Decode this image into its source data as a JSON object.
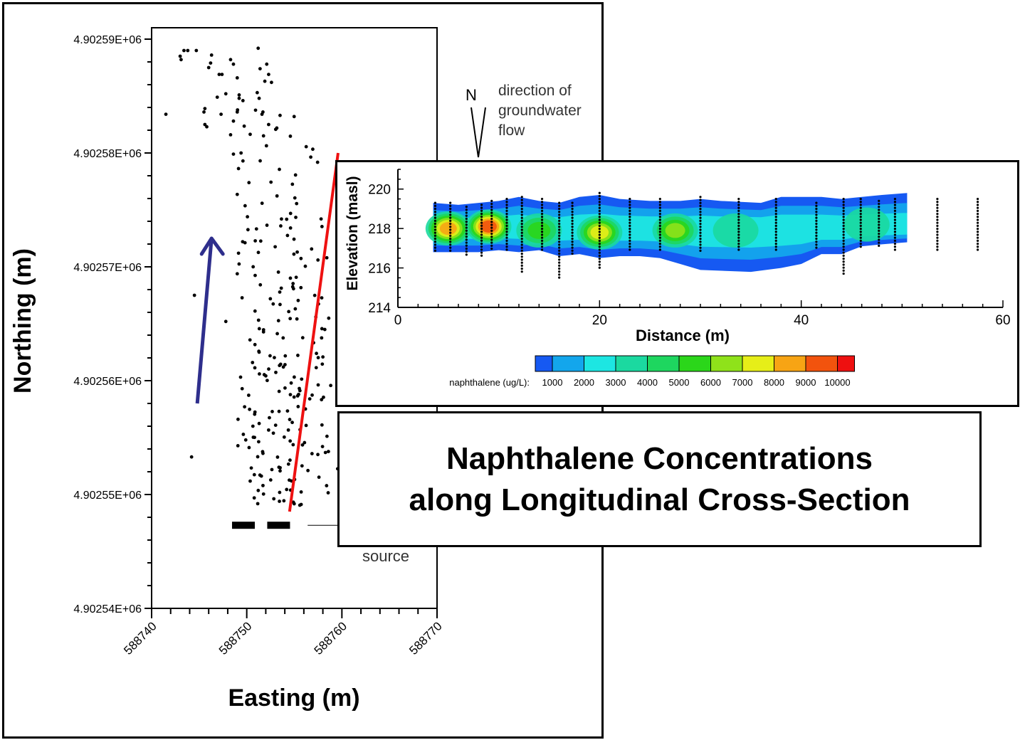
{
  "title": {
    "line1": "Naphthalene Concentrations",
    "line2": "along Longitudinal Cross-Section"
  },
  "colors": {
    "flow_arrow": "#2e2e8c",
    "section_line": "#ee1111"
  },
  "chart_data": [
    {
      "type": "scatter",
      "title": "",
      "xlabel": "Easting (m)",
      "ylabel": "Northing (m)",
      "xlim": [
        588740,
        588770
      ],
      "ylim": [
        4902540,
        4902591
      ],
      "x_ticks": [
        {
          "value": 588740,
          "label": "588740"
        },
        {
          "value": 588750,
          "label": "588750"
        },
        {
          "value": 588760,
          "label": "588760"
        },
        {
          "value": 588770,
          "label": "588770"
        }
      ],
      "y_ticks": [
        {
          "value": 4902540,
          "label": "4.90254E+06"
        },
        {
          "value": 4902550,
          "label": "4.90255E+06"
        },
        {
          "value": 4902560,
          "label": "4.90256E+06"
        },
        {
          "value": 4902570,
          "label": "4.90257E+06"
        },
        {
          "value": 4902580,
          "label": "4.90258E+06"
        },
        {
          "value": 4902590,
          "label": "4.90259E+06"
        }
      ],
      "annotations": {
        "north_label": "N",
        "flow_label": [
          "direction of",
          "groundwater",
          "flow"
        ],
        "source_label": "source"
      },
      "cross_section_line": [
        [
          588759.6,
          4902580
        ],
        [
          588754.5,
          4902548.5
        ]
      ],
      "flow_arrow": [
        [
          588744.8,
          4902558
        ],
        [
          588746.3,
          4902572.5
        ]
      ],
      "source_blocks": [
        [
          588749.5,
          4902547.3
        ],
        [
          588753.2,
          4902547.3
        ]
      ],
      "wells": [
        [
          588743.1,
          4902588.2
        ],
        [
          588752.1,
          4902587.8
        ],
        [
          588749.0,
          4902586.6
        ],
        [
          588751.9,
          4902586.3
        ],
        [
          588744.7,
          4902589.0
        ],
        [
          588748.3,
          4902581.6
        ],
        [
          588746.9,
          4902584.9
        ],
        [
          588749.6,
          4902584.6
        ],
        [
          588746.2,
          4902587.9
        ],
        [
          588752.3,
          4902586.9
        ],
        [
          588749.0,
          4902583.6
        ],
        [
          588752.3,
          4902582.5
        ],
        [
          588751.1,
          4902585.3
        ],
        [
          588748.6,
          4902587.8
        ],
        [
          588747.1,
          4902586.9
        ],
        [
          588745.8,
          4902582.3
        ],
        [
          588749.2,
          4902585.1
        ],
        [
          588751.7,
          4902583.6
        ],
        [
          588746.0,
          4902587.5
        ],
        [
          588747.3,
          4902583.4
        ],
        [
          588746.3,
          4902588.6
        ],
        [
          588748.3,
          4902588.2
        ],
        [
          588749.2,
          4902584.8
        ],
        [
          588743.8,
          4902589.0
        ],
        [
          588747.8,
          4902585.2
        ],
        [
          588751.3,
          4902584.8
        ],
        [
          588743.0,
          4902588.5
        ],
        [
          588751.6,
          4902583.4
        ],
        [
          588743.4,
          4902589.0
        ],
        [
          588745.6,
          4902582.5
        ],
        [
          588749.6,
          4902579.3
        ],
        [
          588753.5,
          4902583.3
        ],
        [
          588751.2,
          4902589.2
        ],
        [
          588749.4,
          4902580.0
        ],
        [
          588748.6,
          4902579.9
        ],
        [
          588752.6,
          4902586.2
        ],
        [
          588745.6,
          4902583.9
        ],
        [
          588751.4,
          4902587.4
        ],
        [
          588748.6,
          4902582.8
        ],
        [
          588747.4,
          4902586.9
        ]
      ],
      "wells_note": ""
    },
    {
      "type": "heatmap",
      "title": "",
      "xlabel": "Distance (m)",
      "ylabel": "Elevation (masl)",
      "xlim": [
        0,
        60
      ],
      "ylim": [
        214,
        221
      ],
      "x_ticks": [
        0,
        20,
        40,
        60
      ],
      "y_ticks": [
        214,
        216,
        218,
        220
      ],
      "legend": {
        "label": "naphthalene (ug/L):",
        "levels": [
          1000,
          2000,
          3000,
          4000,
          5000,
          6000,
          7000,
          8000,
          9000,
          10000
        ],
        "colors": [
          "#1659f2",
          "#13a6ec",
          "#1de6e2",
          "#1bd9a0",
          "#1ed65f",
          "#2bd61a",
          "#8fe21a",
          "#e6ee18",
          "#f7a414",
          "#f2530d",
          "#ee1010"
        ]
      },
      "plume_top": [
        [
          3.5,
          219.3
        ],
        [
          6,
          219.2
        ],
        [
          8,
          219.3
        ],
        [
          10,
          219.4
        ],
        [
          12,
          219.6
        ],
        [
          14,
          219.4
        ],
        [
          16,
          219.3
        ],
        [
          18,
          219.6
        ],
        [
          20,
          219.7
        ],
        [
          22,
          219.5
        ],
        [
          25,
          219.4
        ],
        [
          28,
          219.4
        ],
        [
          30,
          219.5
        ],
        [
          32,
          219.4
        ],
        [
          36,
          219.3
        ],
        [
          38,
          219.6
        ],
        [
          42,
          219.6
        ],
        [
          44,
          219.5
        ],
        [
          46,
          219.6
        ],
        [
          48,
          219.7
        ],
        [
          50.5,
          219.8
        ]
      ],
      "plume_bottom": [
        [
          50.5,
          217.3
        ],
        [
          48,
          217.2
        ],
        [
          46,
          217.1
        ],
        [
          44,
          216.7
        ],
        [
          42,
          216.7
        ],
        [
          40,
          216.2
        ],
        [
          38,
          216.0
        ],
        [
          35,
          215.8
        ],
        [
          30,
          215.9
        ],
        [
          28,
          216.2
        ],
        [
          26,
          216.5
        ],
        [
          24,
          216.6
        ],
        [
          22,
          216.6
        ],
        [
          20,
          216.5
        ],
        [
          18,
          216.7
        ],
        [
          16,
          216.6
        ],
        [
          14,
          216.9
        ],
        [
          12,
          216.8
        ],
        [
          10,
          216.9
        ],
        [
          8,
          216.8
        ],
        [
          3.5,
          216.8
        ]
      ],
      "hotspots": [
        {
          "x": 5.0,
          "y": 218.0,
          "value": 8500
        },
        {
          "x": 9.0,
          "y": 218.1,
          "value": 9000
        },
        {
          "x": 14.0,
          "y": 217.9,
          "value": 5000
        },
        {
          "x": 20.0,
          "y": 217.8,
          "value": 7500
        },
        {
          "x": 27.5,
          "y": 217.9,
          "value": 6000
        },
        {
          "x": 33.5,
          "y": 217.9,
          "value": 3000
        },
        {
          "x": 46.5,
          "y": 218.2,
          "value": 3500
        }
      ],
      "profiles": [
        {
          "x": 3.7,
          "top": 219.3,
          "bottom": 216.8
        },
        {
          "x": 5.2,
          "top": 219.3,
          "bottom": 216.8
        },
        {
          "x": 6.8,
          "top": 219.1,
          "bottom": 216.6
        },
        {
          "x": 8.3,
          "top": 219.2,
          "bottom": 216.6
        },
        {
          "x": 9.3,
          "top": 219.4,
          "bottom": 216.9
        },
        {
          "x": 10.8,
          "top": 219.5,
          "bottom": 216.9
        },
        {
          "x": 12.3,
          "top": 219.6,
          "bottom": 215.7
        },
        {
          "x": 14.3,
          "top": 219.5,
          "bottom": 216.9
        },
        {
          "x": 16.0,
          "top": 219.3,
          "bottom": 215.5
        },
        {
          "x": 17.3,
          "top": 219.3,
          "bottom": 216.6
        },
        {
          "x": 20.0,
          "top": 219.8,
          "bottom": 215.9
        },
        {
          "x": 23.0,
          "top": 219.5,
          "bottom": 216.9
        },
        {
          "x": 26.0,
          "top": 219.5,
          "bottom": 216.8
        },
        {
          "x": 30.0,
          "top": 219.6,
          "bottom": 216.8
        },
        {
          "x": 33.8,
          "top": 219.5,
          "bottom": 216.8
        },
        {
          "x": 37.5,
          "top": 219.5,
          "bottom": 216.8
        },
        {
          "x": 41.5,
          "top": 219.3,
          "bottom": 216.9
        },
        {
          "x": 44.2,
          "top": 219.5,
          "bottom": 215.6
        },
        {
          "x": 45.9,
          "top": 219.5,
          "bottom": 217.0
        },
        {
          "x": 47.7,
          "top": 219.4,
          "bottom": 217.0
        },
        {
          "x": 49.3,
          "top": 219.5,
          "bottom": 216.9
        },
        {
          "x": 53.5,
          "top": 219.5,
          "bottom": 216.9
        },
        {
          "x": 57.5,
          "top": 219.5,
          "bottom": 216.9
        }
      ]
    }
  ]
}
